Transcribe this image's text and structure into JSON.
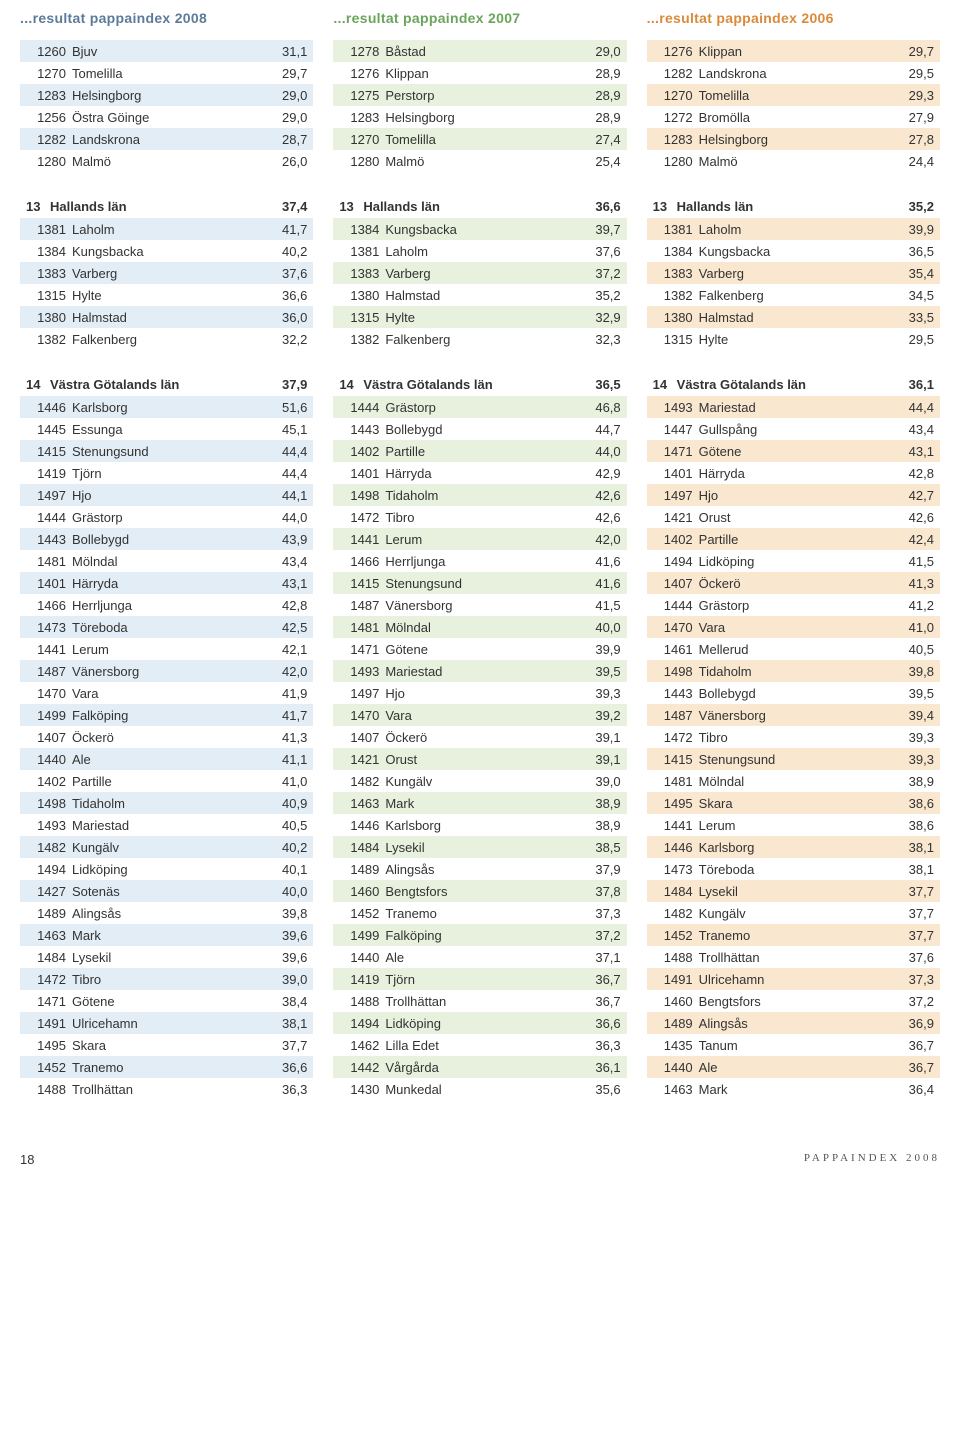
{
  "titles": {
    "c2008": "...resultat pappaindex 2008",
    "c2007": "...resultat pappaindex 2007",
    "c2006": "...resultat pappaindex 2006"
  },
  "colors": {
    "s2008": "#e2edf5",
    "s2007": "#e7f1dd",
    "s2006": "#f9e7cf",
    "t2008": "#5c7b9a",
    "t2007": "#6aa55c",
    "t2006": "#d98a3c",
    "text": "#333333",
    "bg": "#ffffff"
  },
  "columns": [
    {
      "year": "2008",
      "stripe": "s2008",
      "blocks": [
        {
          "header": null,
          "rows": [
            {
              "code": "1260",
              "name": "Bjuv",
              "val": "31,1"
            },
            {
              "code": "1270",
              "name": "Tomelilla",
              "val": "29,7"
            },
            {
              "code": "1283",
              "name": "Helsingborg",
              "val": "29,0"
            },
            {
              "code": "1256",
              "name": "Östra Göinge",
              "val": "29,0"
            },
            {
              "code": "1282",
              "name": "Landskrona",
              "val": "28,7"
            },
            {
              "code": "1280",
              "name": "Malmö",
              "val": "26,0"
            }
          ]
        },
        {
          "header": {
            "num": "13",
            "name": "Hallands län",
            "val": "37,4"
          },
          "rows": [
            {
              "code": "1381",
              "name": "Laholm",
              "val": "41,7"
            },
            {
              "code": "1384",
              "name": "Kungsbacka",
              "val": "40,2"
            },
            {
              "code": "1383",
              "name": "Varberg",
              "val": "37,6"
            },
            {
              "code": "1315",
              "name": "Hylte",
              "val": "36,6"
            },
            {
              "code": "1380",
              "name": "Halmstad",
              "val": "36,0"
            },
            {
              "code": "1382",
              "name": "Falkenberg",
              "val": "32,2"
            }
          ]
        },
        {
          "header": {
            "num": "14",
            "name": "Västra Götalands län",
            "val": "37,9"
          },
          "rows": [
            {
              "code": "1446",
              "name": "Karlsborg",
              "val": "51,6"
            },
            {
              "code": "1445",
              "name": "Essunga",
              "val": "45,1"
            },
            {
              "code": "1415",
              "name": "Stenungsund",
              "val": "44,4"
            },
            {
              "code": "1419",
              "name": "Tjörn",
              "val": "44,4"
            },
            {
              "code": "1497",
              "name": "Hjo",
              "val": "44,1"
            },
            {
              "code": "1444",
              "name": "Grästorp",
              "val": "44,0"
            },
            {
              "code": "1443",
              "name": "Bollebygd",
              "val": "43,9"
            },
            {
              "code": "1481",
              "name": "Mölndal",
              "val": "43,4"
            },
            {
              "code": "1401",
              "name": "Härryda",
              "val": "43,1"
            },
            {
              "code": "1466",
              "name": "Herrljunga",
              "val": "42,8"
            },
            {
              "code": "1473",
              "name": "Töreboda",
              "val": "42,5"
            },
            {
              "code": "1441",
              "name": "Lerum",
              "val": "42,1"
            },
            {
              "code": "1487",
              "name": "Vänersborg",
              "val": "42,0"
            },
            {
              "code": "1470",
              "name": "Vara",
              "val": "41,9"
            },
            {
              "code": "1499",
              "name": "Falköping",
              "val": "41,7"
            },
            {
              "code": "1407",
              "name": "Öckerö",
              "val": "41,3"
            },
            {
              "code": "1440",
              "name": "Ale",
              "val": "41,1"
            },
            {
              "code": "1402",
              "name": "Partille",
              "val": "41,0"
            },
            {
              "code": "1498",
              "name": "Tidaholm",
              "val": "40,9"
            },
            {
              "code": "1493",
              "name": "Mariestad",
              "val": "40,5"
            },
            {
              "code": "1482",
              "name": "Kungälv",
              "val": "40,2"
            },
            {
              "code": "1494",
              "name": "Lidköping",
              "val": "40,1"
            },
            {
              "code": "1427",
              "name": "Sotenäs",
              "val": "40,0"
            },
            {
              "code": "1489",
              "name": "Alingsås",
              "val": "39,8"
            },
            {
              "code": "1463",
              "name": "Mark",
              "val": "39,6"
            },
            {
              "code": "1484",
              "name": "Lysekil",
              "val": "39,6"
            },
            {
              "code": "1472",
              "name": "Tibro",
              "val": "39,0"
            },
            {
              "code": "1471",
              "name": "Götene",
              "val": "38,4"
            },
            {
              "code": "1491",
              "name": "Ulricehamn",
              "val": "38,1"
            },
            {
              "code": "1495",
              "name": "Skara",
              "val": "37,7"
            },
            {
              "code": "1452",
              "name": "Tranemo",
              "val": "36,6"
            },
            {
              "code": "1488",
              "name": "Trollhättan",
              "val": "36,3"
            }
          ]
        }
      ]
    },
    {
      "year": "2007",
      "stripe": "s2007",
      "blocks": [
        {
          "header": null,
          "rows": [
            {
              "code": "1278",
              "name": "Båstad",
              "val": "29,0"
            },
            {
              "code": "1276",
              "name": "Klippan",
              "val": "28,9"
            },
            {
              "code": "1275",
              "name": "Perstorp",
              "val": "28,9"
            },
            {
              "code": "1283",
              "name": "Helsingborg",
              "val": "28,9"
            },
            {
              "code": "1270",
              "name": "Tomelilla",
              "val": "27,4"
            },
            {
              "code": "1280",
              "name": "Malmö",
              "val": "25,4"
            }
          ]
        },
        {
          "header": {
            "num": "13",
            "name": "Hallands län",
            "val": "36,6"
          },
          "rows": [
            {
              "code": "1384",
              "name": "Kungsbacka",
              "val": "39,7"
            },
            {
              "code": "1381",
              "name": "Laholm",
              "val": "37,6"
            },
            {
              "code": "1383",
              "name": "Varberg",
              "val": "37,2"
            },
            {
              "code": "1380",
              "name": "Halmstad",
              "val": "35,2"
            },
            {
              "code": "1315",
              "name": "Hylte",
              "val": "32,9"
            },
            {
              "code": "1382",
              "name": "Falkenberg",
              "val": "32,3"
            }
          ]
        },
        {
          "header": {
            "num": "14",
            "name": "Västra Götalands län",
            "val": "36,5"
          },
          "rows": [
            {
              "code": "1444",
              "name": "Grästorp",
              "val": "46,8"
            },
            {
              "code": "1443",
              "name": "Bollebygd",
              "val": "44,7"
            },
            {
              "code": "1402",
              "name": "Partille",
              "val": "44,0"
            },
            {
              "code": "1401",
              "name": "Härryda",
              "val": "42,9"
            },
            {
              "code": "1498",
              "name": "Tidaholm",
              "val": "42,6"
            },
            {
              "code": "1472",
              "name": "Tibro",
              "val": "42,6"
            },
            {
              "code": "1441",
              "name": "Lerum",
              "val": "42,0"
            },
            {
              "code": "1466",
              "name": "Herrljunga",
              "val": "41,6"
            },
            {
              "code": "1415",
              "name": "Stenungsund",
              "val": "41,6"
            },
            {
              "code": "1487",
              "name": "Vänersborg",
              "val": "41,5"
            },
            {
              "code": "1481",
              "name": "Mölndal",
              "val": "40,0"
            },
            {
              "code": "1471",
              "name": "Götene",
              "val": "39,9"
            },
            {
              "code": "1493",
              "name": "Mariestad",
              "val": "39,5"
            },
            {
              "code": "1497",
              "name": "Hjo",
              "val": "39,3"
            },
            {
              "code": "1470",
              "name": "Vara",
              "val": "39,2"
            },
            {
              "code": "1407",
              "name": "Öckerö",
              "val": "39,1"
            },
            {
              "code": "1421",
              "name": "Orust",
              "val": "39,1"
            },
            {
              "code": "1482",
              "name": "Kungälv",
              "val": "39,0"
            },
            {
              "code": "1463",
              "name": "Mark",
              "val": "38,9"
            },
            {
              "code": "1446",
              "name": "Karlsborg",
              "val": "38,9"
            },
            {
              "code": "1484",
              "name": "Lysekil",
              "val": "38,5"
            },
            {
              "code": "1489",
              "name": "Alingsås",
              "val": "37,9"
            },
            {
              "code": "1460",
              "name": "Bengtsfors",
              "val": "37,8"
            },
            {
              "code": "1452",
              "name": "Tranemo",
              "val": "37,3"
            },
            {
              "code": "1499",
              "name": "Falköping",
              "val": "37,2"
            },
            {
              "code": "1440",
              "name": "Ale",
              "val": "37,1"
            },
            {
              "code": "1419",
              "name": "Tjörn",
              "val": "36,7"
            },
            {
              "code": "1488",
              "name": "Trollhättan",
              "val": "36,7"
            },
            {
              "code": "1494",
              "name": "Lidköping",
              "val": "36,6"
            },
            {
              "code": "1462",
              "name": "Lilla Edet",
              "val": "36,3"
            },
            {
              "code": "1442",
              "name": "Vårgårda",
              "val": "36,1"
            },
            {
              "code": "1430",
              "name": "Munkedal",
              "val": "35,6"
            }
          ]
        }
      ]
    },
    {
      "year": "2006",
      "stripe": "s2006",
      "blocks": [
        {
          "header": null,
          "rows": [
            {
              "code": "1276",
              "name": "Klippan",
              "val": "29,7"
            },
            {
              "code": "1282",
              "name": "Landskrona",
              "val": "29,5"
            },
            {
              "code": "1270",
              "name": "Tomelilla",
              "val": "29,3"
            },
            {
              "code": "1272",
              "name": "Bromölla",
              "val": "27,9"
            },
            {
              "code": "1283",
              "name": "Helsingborg",
              "val": "27,8"
            },
            {
              "code": "1280",
              "name": "Malmö",
              "val": "24,4"
            }
          ]
        },
        {
          "header": {
            "num": "13",
            "name": "Hallands län",
            "val": "35,2"
          },
          "rows": [
            {
              "code": "1381",
              "name": "Laholm",
              "val": "39,9"
            },
            {
              "code": "1384",
              "name": "Kungsbacka",
              "val": "36,5"
            },
            {
              "code": "1383",
              "name": "Varberg",
              "val": "35,4"
            },
            {
              "code": "1382",
              "name": "Falkenberg",
              "val": "34,5"
            },
            {
              "code": "1380",
              "name": "Halmstad",
              "val": "33,5"
            },
            {
              "code": "1315",
              "name": "Hylte",
              "val": "29,5"
            }
          ]
        },
        {
          "header": {
            "num": "14",
            "name": "Västra Götalands län",
            "val": "36,1"
          },
          "rows": [
            {
              "code": "1493",
              "name": "Mariestad",
              "val": "44,4"
            },
            {
              "code": "1447",
              "name": "Gullspång",
              "val": "43,4"
            },
            {
              "code": "1471",
              "name": "Götene",
              "val": "43,1"
            },
            {
              "code": "1401",
              "name": "Härryda",
              "val": "42,8"
            },
            {
              "code": "1497",
              "name": "Hjo",
              "val": "42,7"
            },
            {
              "code": "1421",
              "name": "Orust",
              "val": "42,6"
            },
            {
              "code": "1402",
              "name": "Partille",
              "val": "42,4"
            },
            {
              "code": "1494",
              "name": "Lidköping",
              "val": "41,5"
            },
            {
              "code": "1407",
              "name": "Öckerö",
              "val": "41,3"
            },
            {
              "code": "1444",
              "name": "Grästorp",
              "val": "41,2"
            },
            {
              "code": "1470",
              "name": "Vara",
              "val": "41,0"
            },
            {
              "code": "1461",
              "name": "Mellerud",
              "val": "40,5"
            },
            {
              "code": "1498",
              "name": "Tidaholm",
              "val": "39,8"
            },
            {
              "code": "1443",
              "name": "Bollebygd",
              "val": "39,5"
            },
            {
              "code": "1487",
              "name": "Vänersborg",
              "val": "39,4"
            },
            {
              "code": "1472",
              "name": "Tibro",
              "val": "39,3"
            },
            {
              "code": "1415",
              "name": "Stenungsund",
              "val": "39,3"
            },
            {
              "code": "1481",
              "name": "Mölndal",
              "val": "38,9"
            },
            {
              "code": "1495",
              "name": "Skara",
              "val": "38,6"
            },
            {
              "code": "1441",
              "name": "Lerum",
              "val": "38,6"
            },
            {
              "code": "1446",
              "name": "Karlsborg",
              "val": "38,1"
            },
            {
              "code": "1473",
              "name": "Töreboda",
              "val": "38,1"
            },
            {
              "code": "1484",
              "name": "Lysekil",
              "val": "37,7"
            },
            {
              "code": "1482",
              "name": "Kungälv",
              "val": "37,7"
            },
            {
              "code": "1452",
              "name": "Tranemo",
              "val": "37,7"
            },
            {
              "code": "1488",
              "name": "Trollhättan",
              "val": "37,6"
            },
            {
              "code": "1491",
              "name": "Ulricehamn",
              "val": "37,3"
            },
            {
              "code": "1460",
              "name": "Bengtsfors",
              "val": "37,2"
            },
            {
              "code": "1489",
              "name": "Alingsås",
              "val": "36,9"
            },
            {
              "code": "1435",
              "name": "Tanum",
              "val": "36,7"
            },
            {
              "code": "1440",
              "name": "Ale",
              "val": "36,7"
            },
            {
              "code": "1463",
              "name": "Mark",
              "val": "36,4"
            }
          ]
        }
      ]
    }
  ],
  "footer": {
    "page": "18",
    "source": "PAPPAINDEX 2008"
  }
}
